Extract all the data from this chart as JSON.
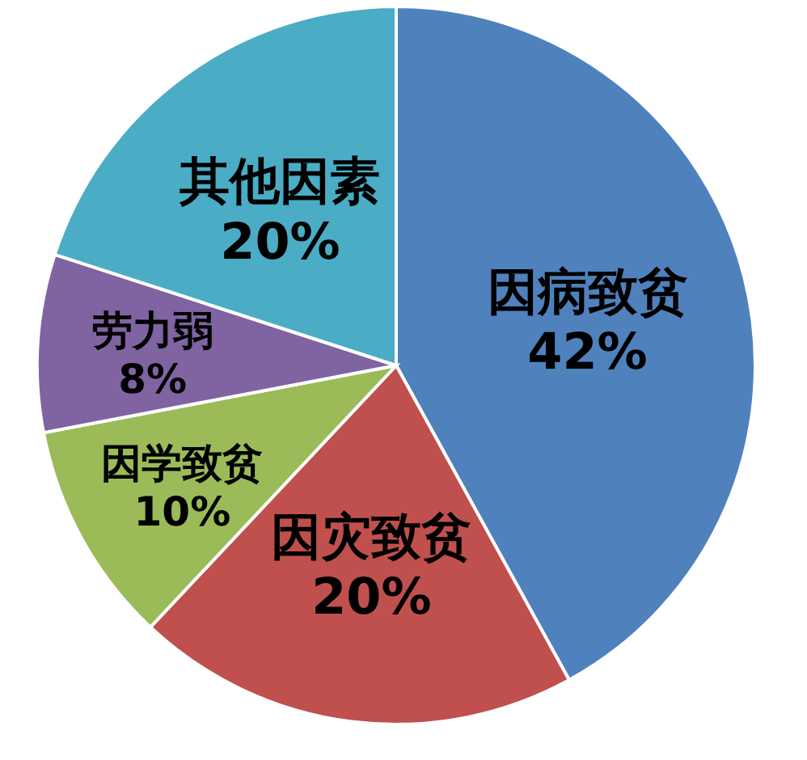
{
  "chart_data": {
    "type": "pie",
    "categories": [
      "因病致贫",
      "因灾致贫",
      "因学致贫",
      "劳力弱",
      "其他因素"
    ],
    "values": [
      42,
      20,
      10,
      8,
      20
    ],
    "colors": [
      "#4f81bd",
      "#c0504d",
      "#9bbb59",
      "#8064a2",
      "#4bacc6"
    ],
    "value_labels": [
      "42%",
      "20%",
      "10%",
      "8%",
      "20%"
    ]
  }
}
